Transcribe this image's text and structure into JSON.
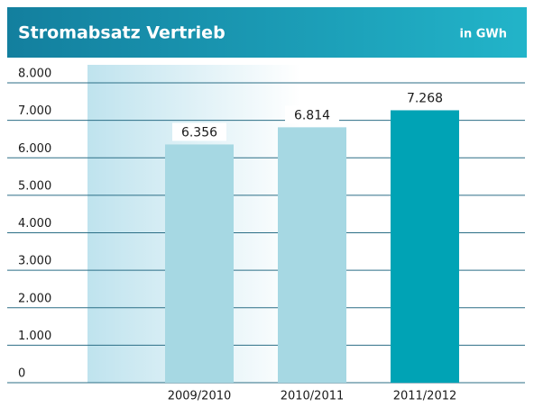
{
  "chart_data": {
    "type": "bar",
    "title": "Stromabsatz Vertrieb",
    "subtitle": "in GWh",
    "categories": [
      "2009/2010",
      "2010/2011",
      "2011/2012"
    ],
    "values": [
      6356,
      6814,
      7268
    ],
    "value_labels": [
      "6.356",
      "6.814",
      "7.268"
    ],
    "colors": [
      "#a6d8e3",
      "#a6d8e3",
      "#00a3b5"
    ],
    "grid_color": "#2b6e86",
    "ylim": [
      0,
      8000
    ],
    "yticks": [
      0,
      {
        "value": 1000,
        "label": "1.000"
      },
      {
        "value": 2000,
        "label": "2.000"
      },
      {
        "value": 3000,
        "label": "3.000"
      },
      {
        "value": 4000,
        "label": "4.000"
      },
      {
        "value": 5000,
        "label": "5.000"
      },
      {
        "value": 6000,
        "label": "6.000"
      },
      {
        "value": 7000,
        "label": "7.000"
      },
      {
        "value": 8000,
        "label": "8.000"
      }
    ],
    "grid": true
  }
}
